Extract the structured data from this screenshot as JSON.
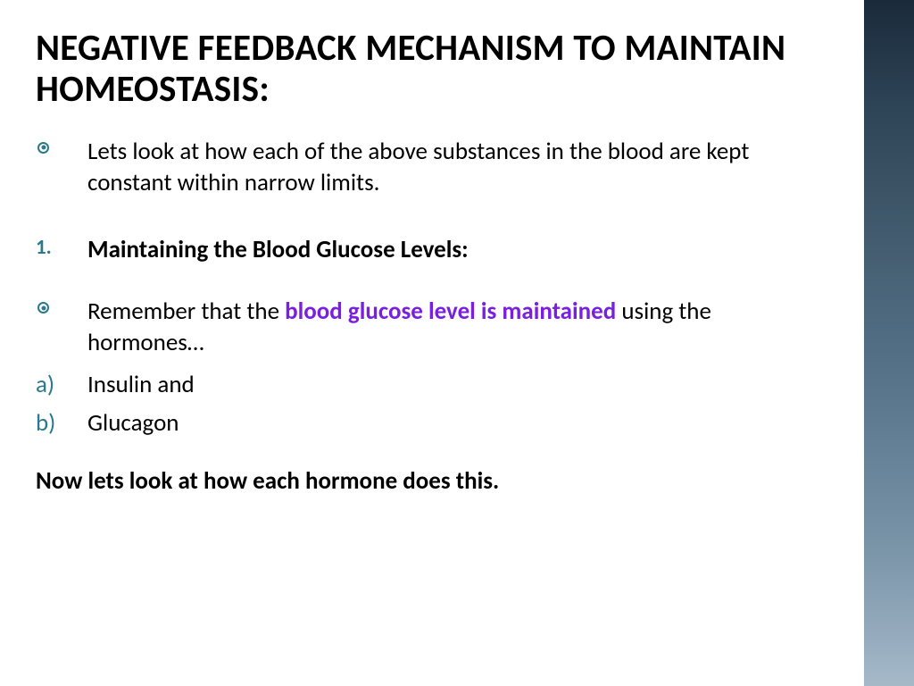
{
  "title": "NEGATIVE FEEDBACK MECHANISM TO MAINTAIN HOMEOSTASIS:",
  "items": {
    "intro": "Lets look at how each of the above substances in the blood are kept constant within narrow limits.",
    "num1_marker": "1.",
    "num1_text": "Maintaining the Blood Glucose Levels:",
    "remember_pre": "Remember that the ",
    "remember_hl": "blood glucose level is maintained",
    "remember_post": " using the hormones…",
    "a_marker": "a)",
    "a_text": "Insulin and",
    "b_marker": "b)",
    "b_text": "Glucagon"
  },
  "closing": "Now lets look at how each hormone does this.",
  "colors": {
    "accent": "#2a7a8c",
    "highlight": "#7a1fe0",
    "text": "#000000",
    "bg": "#ffffff"
  }
}
